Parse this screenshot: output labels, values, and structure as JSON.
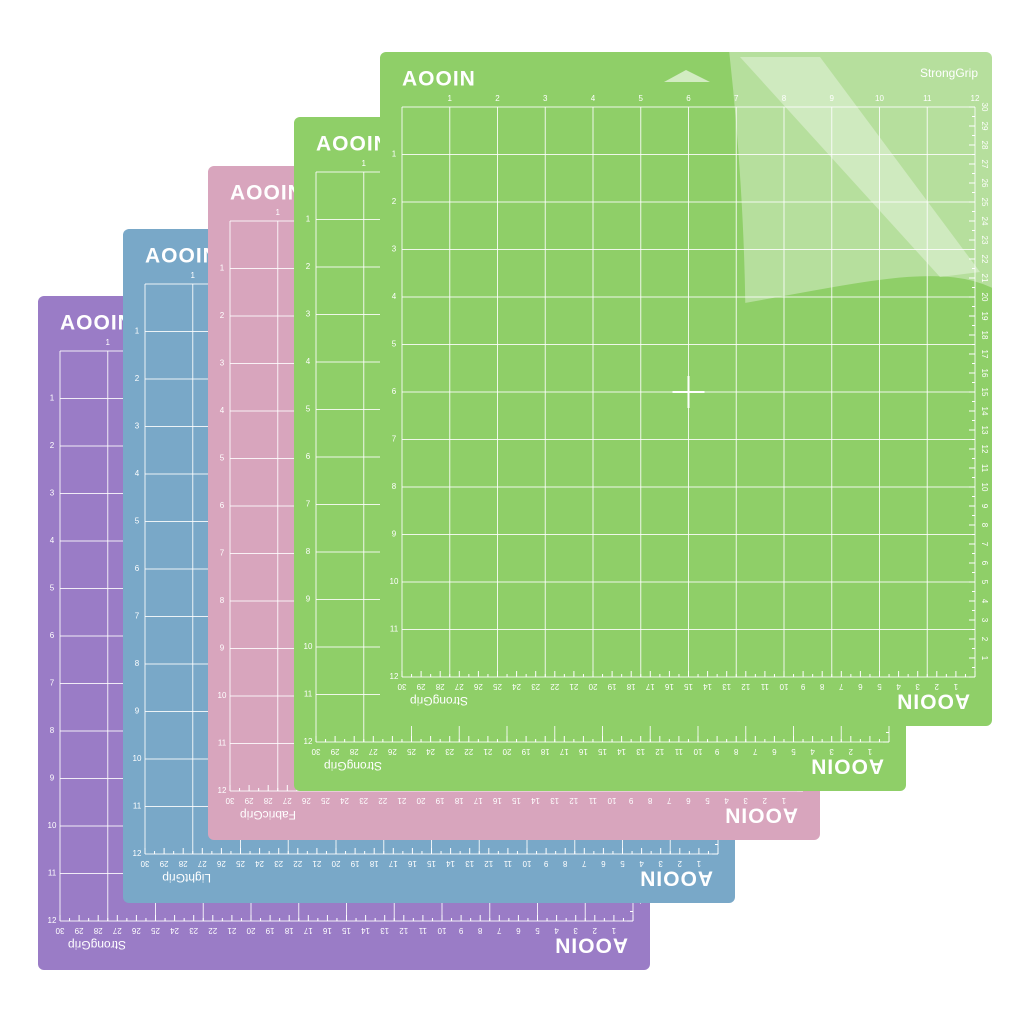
{
  "brand": "AOOIN",
  "ruler": {
    "inches": [
      1,
      2,
      3,
      4,
      5,
      6,
      7,
      8,
      9,
      10,
      11,
      12
    ],
    "cm": [
      1,
      2,
      3,
      4,
      5,
      6,
      7,
      8,
      9,
      10,
      11,
      12,
      13,
      14,
      15,
      16,
      17,
      18,
      19,
      20,
      21,
      22,
      23,
      24,
      25,
      26,
      27,
      28,
      29,
      30
    ]
  },
  "mats": [
    {
      "grip": "StrongGrip",
      "color": "#9a7cc6"
    },
    {
      "grip": "LightGrip",
      "color": "#79a8c8"
    },
    {
      "grip": "FabricGrip",
      "color": "#d8a5bd"
    },
    {
      "grip": "StrongGrip",
      "color": "#8fcf68"
    },
    {
      "grip": "StrongGrip",
      "color": "#8fcf68",
      "top_label": "StrongGrip"
    }
  ]
}
